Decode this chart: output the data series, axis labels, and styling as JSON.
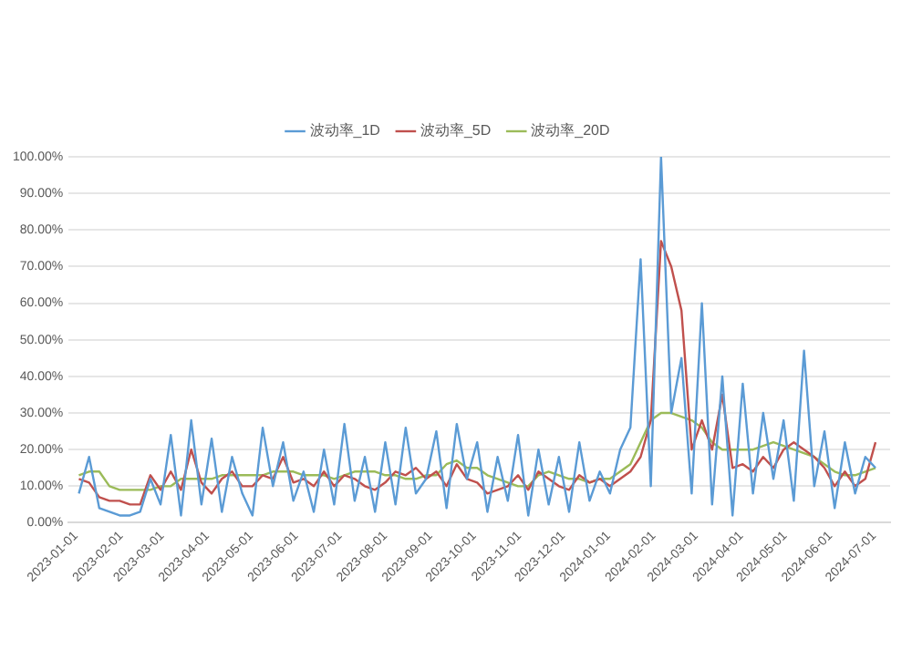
{
  "chart_data": {
    "type": "line",
    "legend": "top",
    "grid": "y",
    "marker": "none",
    "line_style": "solid",
    "x": [
      "2023-01-03",
      "2023-01-10",
      "2023-01-17",
      "2023-01-24",
      "2023-01-31",
      "2023-02-07",
      "2023-02-14",
      "2023-02-21",
      "2023-02-28",
      "2023-03-07",
      "2023-03-14",
      "2023-03-21",
      "2023-03-28",
      "2023-04-04",
      "2023-04-11",
      "2023-04-18",
      "2023-04-25",
      "2023-05-02",
      "2023-05-09",
      "2023-05-16",
      "2023-05-23",
      "2023-05-30",
      "2023-06-06",
      "2023-06-13",
      "2023-06-20",
      "2023-06-27",
      "2023-07-04",
      "2023-07-11",
      "2023-07-18",
      "2023-07-25",
      "2023-08-01",
      "2023-08-08",
      "2023-08-15",
      "2023-08-22",
      "2023-08-29",
      "2023-09-05",
      "2023-09-12",
      "2023-09-19",
      "2023-09-26",
      "2023-10-03",
      "2023-10-10",
      "2023-10-17",
      "2023-10-24",
      "2023-10-31",
      "2023-11-07",
      "2023-11-14",
      "2023-11-21",
      "2023-11-28",
      "2023-12-05",
      "2023-12-12",
      "2023-12-19",
      "2023-12-26",
      "2024-01-02",
      "2024-01-09",
      "2024-01-16",
      "2024-01-23",
      "2024-01-30",
      "2024-02-06",
      "2024-02-13",
      "2024-02-20",
      "2024-02-27",
      "2024-03-05",
      "2024-03-12",
      "2024-03-19",
      "2024-03-26",
      "2024-04-02",
      "2024-04-09",
      "2024-04-16",
      "2024-04-23",
      "2024-04-30",
      "2024-05-07",
      "2024-05-14",
      "2024-05-21",
      "2024-05-28",
      "2024-06-04",
      "2024-06-11",
      "2024-06-18",
      "2024-06-25",
      "2024-07-02"
    ],
    "series": [
      {
        "name": "波动率_1D",
        "color": "#5b9bd5",
        "values": [
          8,
          18,
          4,
          3,
          2,
          2,
          3,
          12,
          5,
          24,
          2,
          28,
          5,
          23,
          3,
          18,
          8,
          2,
          26,
          10,
          22,
          6,
          14,
          3,
          20,
          5,
          27,
          6,
          18,
          3,
          22,
          5,
          26,
          8,
          12,
          25,
          4,
          27,
          12,
          22,
          3,
          18,
          6,
          24,
          2,
          20,
          5,
          18,
          3,
          22,
          6,
          14,
          8,
          20,
          26,
          72,
          10,
          100,
          30,
          45,
          8,
          60,
          5,
          40,
          2,
          38,
          8,
          30,
          12,
          28,
          6,
          47,
          10,
          25,
          4,
          22,
          8,
          18,
          15
        ]
      },
      {
        "name": "波动率_5D",
        "color": "#c0504d",
        "values": [
          12,
          11,
          7,
          6,
          6,
          5,
          5,
          13,
          9,
          14,
          9,
          20,
          11,
          8,
          12,
          14,
          10,
          10,
          13,
          12,
          18,
          11,
          12,
          10,
          14,
          10,
          13,
          12,
          10,
          9,
          11,
          14,
          13,
          15,
          12,
          14,
          10,
          16,
          12,
          11,
          8,
          9,
          10,
          13,
          9,
          14,
          12,
          10,
          9,
          13,
          11,
          12,
          10,
          12,
          14,
          18,
          28,
          77,
          70,
          58,
          20,
          28,
          20,
          35,
          15,
          16,
          14,
          18,
          15,
          20,
          22,
          20,
          18,
          15,
          10,
          14,
          10,
          12,
          22
        ]
      },
      {
        "name": "波动率_20D",
        "color": "#9bbb59",
        "values": [
          13,
          14,
          14,
          10,
          9,
          9,
          9,
          9,
          10,
          10,
          12,
          12,
          12,
          12,
          13,
          13,
          13,
          13,
          13,
          14,
          14,
          14,
          13,
          13,
          13,
          12,
          13,
          14,
          14,
          14,
          13,
          13,
          12,
          12,
          13,
          13,
          16,
          17,
          15,
          15,
          13,
          12,
          11,
          10,
          10,
          13,
          14,
          13,
          12,
          12,
          11,
          12,
          12,
          14,
          16,
          22,
          28,
          30,
          30,
          29,
          28,
          26,
          22,
          20,
          20,
          20,
          20,
          21,
          22,
          21,
          20,
          19,
          18,
          16,
          14,
          13,
          13,
          14,
          15
        ]
      }
    ],
    "xlim": [
      "2022-12-27",
      "2024-07-12"
    ],
    "xticks": [
      "2023-01-01",
      "2023-02-01",
      "2023-03-01",
      "2023-04-01",
      "2023-05-01",
      "2023-06-01",
      "2023-07-01",
      "2023-08-01",
      "2023-09-01",
      "2023-10-01",
      "2023-11-01",
      "2023-12-01",
      "2024-01-01",
      "2024-02-01",
      "2024-03-01",
      "2024-04-01",
      "2024-05-01",
      "2024-06-01",
      "2024-07-01"
    ],
    "ylim": [
      0,
      100
    ],
    "yticks": [
      {
        "value": 0,
        "label": "0.00%"
      },
      {
        "value": 10,
        "label": "10.00%"
      },
      {
        "value": 20,
        "label": "20.00%"
      },
      {
        "value": 30,
        "label": "30.00%"
      },
      {
        "value": 40,
        "label": "40.00%"
      },
      {
        "value": 50,
        "label": "50.00%"
      },
      {
        "value": 60,
        "label": "60.00%"
      },
      {
        "value": 70,
        "label": "70.00%"
      },
      {
        "value": 80,
        "label": "80.00%"
      },
      {
        "value": 90,
        "label": "90.00%"
      },
      {
        "value": 100,
        "label": "100.00%"
      }
    ]
  }
}
